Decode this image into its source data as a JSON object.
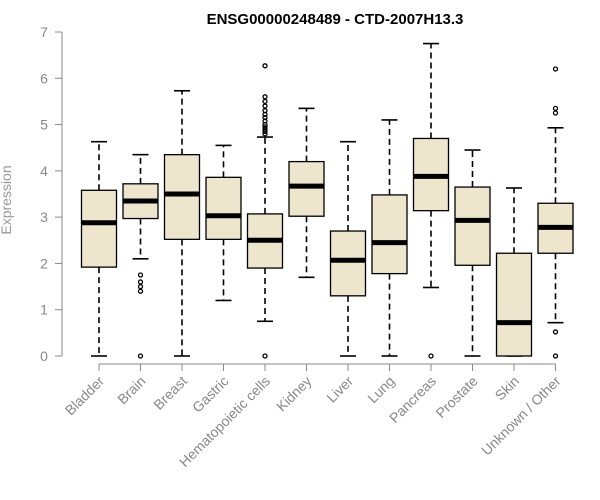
{
  "chart_data": {
    "type": "boxplot",
    "title": "ENSG00000248489 - CTD-2007H13.3",
    "xlabel": "",
    "ylabel": "Expression",
    "ylim": [
      0,
      7
    ],
    "yticks": [
      0,
      1,
      2,
      3,
      4,
      5,
      6,
      7
    ],
    "grid": false,
    "box_fill": "#ede6cd",
    "categories": [
      "Bladder",
      "Brain",
      "Breast",
      "Gastric",
      "Hematopoietic cells",
      "Kidney",
      "Liver",
      "Lung",
      "Pancreas",
      "Prostate",
      "Skin",
      "Unknown / Other"
    ],
    "boxes": [
      {
        "category": "Bladder",
        "whisker_low": 0.0,
        "q1": 1.92,
        "median": 2.88,
        "q3": 3.58,
        "whisker_high": 4.63,
        "outliers": []
      },
      {
        "category": "Brain",
        "whisker_low": 2.1,
        "q1": 2.97,
        "median": 3.35,
        "q3": 3.72,
        "whisker_high": 4.35,
        "outliers": [
          0.0,
          1.4,
          1.5,
          1.6,
          1.75
        ]
      },
      {
        "category": "Breast",
        "whisker_low": 0.0,
        "q1": 2.52,
        "median": 3.5,
        "q3": 4.35,
        "whisker_high": 5.73,
        "outliers": []
      },
      {
        "category": "Gastric",
        "whisker_low": 1.2,
        "q1": 2.52,
        "median": 3.03,
        "q3": 3.86,
        "whisker_high": 4.55,
        "outliers": []
      },
      {
        "category": "Hematopoietic cells",
        "whisker_low": 0.75,
        "q1": 1.9,
        "median": 2.5,
        "q3": 3.07,
        "whisker_high": 4.73,
        "outliers": [
          0.0,
          4.8,
          4.85,
          4.9,
          4.95,
          5.0,
          5.08,
          5.15,
          5.22,
          5.3,
          5.4,
          5.5,
          5.6,
          6.27
        ]
      },
      {
        "category": "Kidney",
        "whisker_low": 1.7,
        "q1": 3.02,
        "median": 3.67,
        "q3": 4.2,
        "whisker_high": 5.35,
        "outliers": []
      },
      {
        "category": "Liver",
        "whisker_low": 0.0,
        "q1": 1.3,
        "median": 2.07,
        "q3": 2.7,
        "whisker_high": 4.63,
        "outliers": []
      },
      {
        "category": "Lung",
        "whisker_low": 0.0,
        "q1": 1.78,
        "median": 2.45,
        "q3": 3.48,
        "whisker_high": 5.1,
        "outliers": []
      },
      {
        "category": "Pancreas",
        "whisker_low": 1.48,
        "q1": 3.14,
        "median": 3.88,
        "q3": 4.7,
        "whisker_high": 6.75,
        "outliers": [
          0.0
        ]
      },
      {
        "category": "Prostate",
        "whisker_low": 0.0,
        "q1": 1.96,
        "median": 2.93,
        "q3": 3.65,
        "whisker_high": 4.45,
        "outliers": []
      },
      {
        "category": "Skin",
        "whisker_low": 0.0,
        "q1": 0.0,
        "median": 0.72,
        "q3": 2.22,
        "whisker_high": 3.63,
        "outliers": []
      },
      {
        "category": "Unknown / Other",
        "whisker_low": 0.72,
        "q1": 2.22,
        "median": 2.78,
        "q3": 3.3,
        "whisker_high": 4.93,
        "outliers": [
          0.0,
          0.52,
          5.25,
          5.35,
          6.2
        ]
      }
    ]
  }
}
